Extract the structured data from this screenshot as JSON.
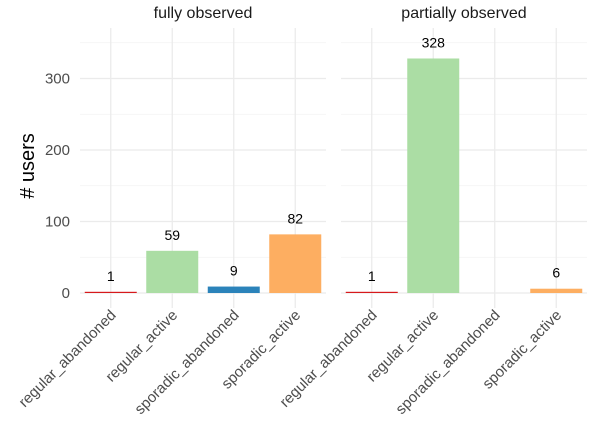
{
  "chart_data": {
    "type": "bar",
    "ylabel": "# users",
    "ylim": [
      0,
      360
    ],
    "yticks": [
      0,
      100,
      200,
      300
    ],
    "grid": true,
    "legend": "none",
    "categories": [
      "regular_abandoned",
      "regular_active",
      "sporadic_abandoned",
      "sporadic_active"
    ],
    "colors": {
      "regular_abandoned": "#d7191c",
      "regular_active": "#abdda4",
      "sporadic_abandoned": "#2b83ba",
      "sporadic_active": "#fdae61"
    },
    "panels": [
      {
        "title": "fully observed",
        "values": [
          1,
          59,
          9,
          82
        ]
      },
      {
        "title": "partially observed",
        "values": [
          1,
          328,
          null,
          6
        ]
      }
    ]
  }
}
